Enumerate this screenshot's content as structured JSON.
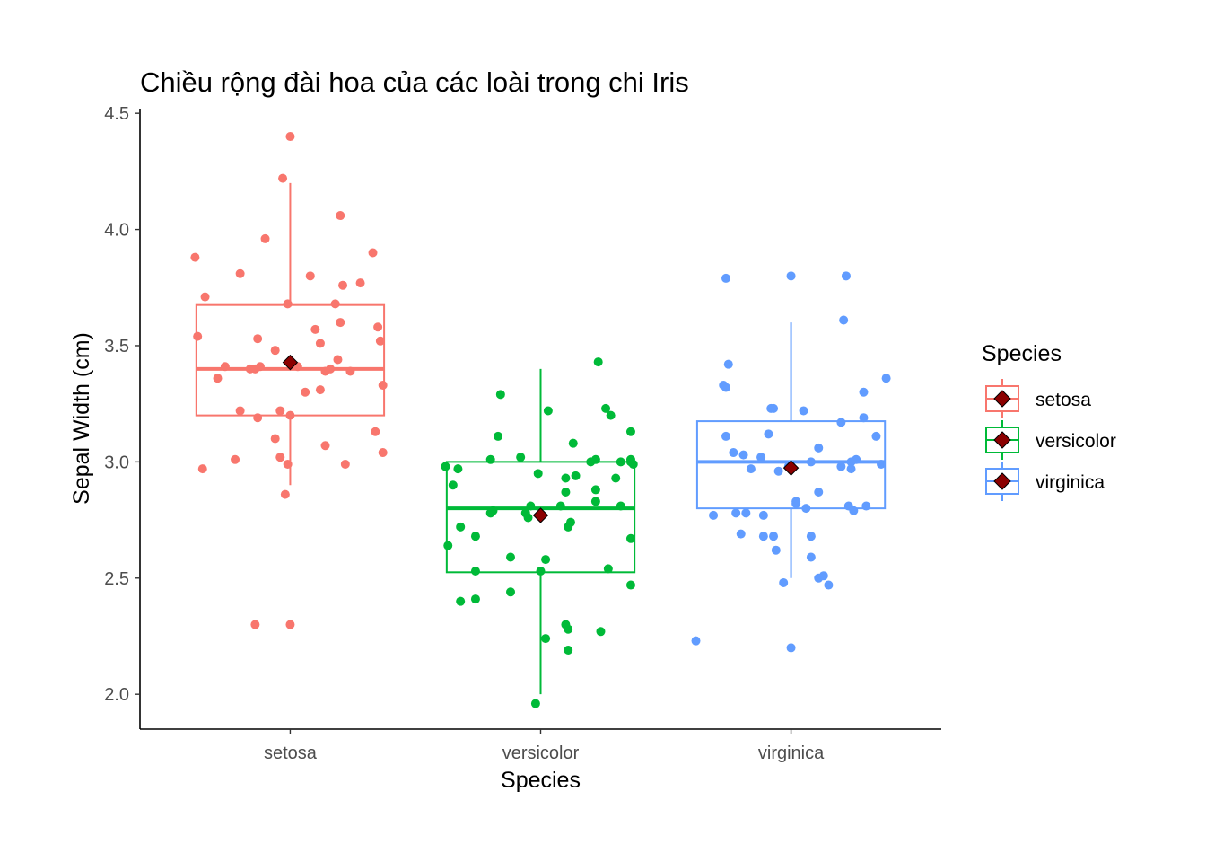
{
  "chart_data": {
    "type": "boxplot",
    "title": "Chiều rộng đài hoa của các loài trong chi Iris",
    "xlabel": "Species",
    "ylabel": "Sepal Width (cm)",
    "ylim": [
      1.85,
      4.52
    ],
    "yticks": [
      2.0,
      2.5,
      3.0,
      3.5,
      4.0,
      4.5
    ],
    "ytick_labels": [
      "2.0",
      "2.5",
      "3.0",
      "3.5",
      "4.0",
      "4.5"
    ],
    "categories": [
      "setosa",
      "versicolor",
      "virginica"
    ],
    "grid": false,
    "legend": {
      "title": "Species",
      "position": "right",
      "entries": [
        "setosa",
        "versicolor",
        "virginica"
      ]
    },
    "mean_marker_color": "#8B0000",
    "series": [
      {
        "name": "setosa",
        "color": "#F8766D",
        "box": {
          "q1": 3.2,
          "median": 3.4,
          "q3": 3.675,
          "whisker_low": 2.9,
          "whisker_high": 4.2,
          "mean": 3.428
        },
        "points": [
          [
            -0.38,
            3.88
          ],
          [
            -0.34,
            3.71
          ],
          [
            -0.29,
            3.36
          ],
          [
            -0.26,
            3.41
          ],
          [
            -0.2,
            3.22
          ],
          [
            -0.16,
            3.4
          ],
          [
            -0.1,
            3.96
          ],
          [
            -0.2,
            3.81
          ],
          [
            -0.13,
            3.19
          ],
          [
            -0.22,
            3.01
          ],
          [
            -0.37,
            3.54
          ],
          [
            -0.35,
            2.97
          ],
          [
            -0.06,
            3.48
          ],
          [
            -0.04,
            3.02
          ],
          [
            -0.13,
            3.53
          ],
          [
            -0.14,
            3.4
          ],
          [
            -0.06,
            3.1
          ],
          [
            -0.03,
            4.22
          ],
          [
            -0.04,
            3.22
          ],
          [
            -0.01,
            2.99
          ],
          [
            0.0,
            3.2
          ],
          [
            0.03,
            3.41
          ],
          [
            -0.12,
            3.41
          ],
          [
            0.08,
            3.8
          ],
          [
            0.06,
            3.3
          ],
          [
            -0.01,
            3.68
          ],
          [
            0.12,
            3.31
          ],
          [
            -0.02,
            2.86
          ],
          [
            0.14,
            3.39
          ],
          [
            0.1,
            3.57
          ],
          [
            0.0,
            4.4
          ],
          [
            0.12,
            3.51
          ],
          [
            -0.14,
            2.3
          ],
          [
            0.0,
            2.3
          ],
          [
            0.14,
            3.07
          ],
          [
            0.19,
            3.44
          ],
          [
            0.18,
            3.68
          ],
          [
            0.2,
            3.6
          ],
          [
            0.21,
            3.76
          ],
          [
            0.2,
            4.06
          ],
          [
            0.16,
            3.4
          ],
          [
            0.22,
            2.99
          ],
          [
            0.24,
            3.39
          ],
          [
            0.28,
            3.77
          ],
          [
            0.33,
            3.9
          ],
          [
            0.35,
            3.58
          ],
          [
            0.36,
            3.52
          ],
          [
            0.37,
            3.33
          ],
          [
            0.34,
            3.13
          ],
          [
            0.37,
            3.04
          ]
        ]
      },
      {
        "name": "versicolor",
        "color": "#00BA38",
        "box": {
          "q1": 2.525,
          "median": 2.8,
          "q3": 3.0,
          "whisker_low": 2.0,
          "whisker_high": 3.4,
          "mean": 2.77
        },
        "points": [
          [
            -0.38,
            2.98
          ],
          [
            -0.37,
            2.64
          ],
          [
            -0.35,
            2.9
          ],
          [
            -0.33,
            2.97
          ],
          [
            -0.32,
            2.72
          ],
          [
            -0.26,
            2.53
          ],
          [
            -0.26,
            2.68
          ],
          [
            -0.32,
            2.4
          ],
          [
            -0.26,
            2.41
          ],
          [
            -0.2,
            3.01
          ],
          [
            -0.19,
            2.79
          ],
          [
            -0.2,
            2.78
          ],
          [
            -0.16,
            3.29
          ],
          [
            -0.17,
            3.11
          ],
          [
            -0.12,
            2.59
          ],
          [
            -0.12,
            2.44
          ],
          [
            -0.08,
            3.02
          ],
          [
            -0.06,
            2.78
          ],
          [
            -0.05,
            2.76
          ],
          [
            -0.04,
            2.81
          ],
          [
            -0.01,
            2.95
          ],
          [
            0.0,
            2.53
          ],
          [
            0.02,
            2.58
          ],
          [
            0.02,
            2.24
          ],
          [
            0.03,
            3.22
          ],
          [
            -0.02,
            1.96
          ],
          [
            0.1,
            2.87
          ],
          [
            0.08,
            2.81
          ],
          [
            0.1,
            2.3
          ],
          [
            0.11,
            2.28
          ],
          [
            0.1,
            2.93
          ],
          [
            0.11,
            2.72
          ],
          [
            0.12,
            2.74
          ],
          [
            0.11,
            2.19
          ],
          [
            0.14,
            2.94
          ],
          [
            0.13,
            3.08
          ],
          [
            0.2,
            3.0
          ],
          [
            0.22,
            3.01
          ],
          [
            0.22,
            2.88
          ],
          [
            0.22,
            2.83
          ],
          [
            0.24,
            2.27
          ],
          [
            0.23,
            3.43
          ],
          [
            0.26,
            3.23
          ],
          [
            0.27,
            2.54
          ],
          [
            0.28,
            3.2
          ],
          [
            0.32,
            3.0
          ],
          [
            0.32,
            2.81
          ],
          [
            0.3,
            2.93
          ],
          [
            0.36,
            3.0
          ],
          [
            0.36,
            3.13
          ],
          [
            0.37,
            2.99
          ],
          [
            0.36,
            3.01
          ],
          [
            0.36,
            2.47
          ],
          [
            0.36,
            2.67
          ]
        ]
      },
      {
        "name": "virginica",
        "color": "#619CFF",
        "box": {
          "q1": 2.8,
          "median": 3.0,
          "q3": 3.175,
          "whisker_low": 2.5,
          "whisker_high": 3.6,
          "mean": 2.974
        },
        "points": [
          [
            -0.38,
            2.23
          ],
          [
            -0.31,
            2.77
          ],
          [
            -0.26,
            3.79
          ],
          [
            -0.26,
            3.11
          ],
          [
            -0.27,
            3.33
          ],
          [
            -0.26,
            3.32
          ],
          [
            -0.25,
            3.42
          ],
          [
            -0.23,
            3.04
          ],
          [
            -0.22,
            2.78
          ],
          [
            -0.2,
            2.69
          ],
          [
            -0.19,
            3.03
          ],
          [
            -0.18,
            2.78
          ],
          [
            -0.16,
            2.97
          ],
          [
            -0.12,
            3.02
          ],
          [
            -0.11,
            2.77
          ],
          [
            -0.11,
            2.68
          ],
          [
            -0.09,
            3.12
          ],
          [
            -0.07,
            3.23
          ],
          [
            -0.08,
            3.23
          ],
          [
            -0.07,
            2.68
          ],
          [
            -0.06,
            2.62
          ],
          [
            -0.05,
            2.96
          ],
          [
            -0.03,
            2.48
          ],
          [
            -0.01,
            2.98
          ],
          [
            0.0,
            2.2
          ],
          [
            0.0,
            3.8
          ],
          [
            0.02,
            2.83
          ],
          [
            0.02,
            2.82
          ],
          [
            0.05,
            3.22
          ],
          [
            0.06,
            2.8
          ],
          [
            0.08,
            2.59
          ],
          [
            0.08,
            2.68
          ],
          [
            0.08,
            3.0
          ],
          [
            0.11,
            2.87
          ],
          [
            0.11,
            3.06
          ],
          [
            0.11,
            2.5
          ],
          [
            0.13,
            2.51
          ],
          [
            0.15,
            2.47
          ],
          [
            0.2,
            3.17
          ],
          [
            0.2,
            2.98
          ],
          [
            0.21,
            3.61
          ],
          [
            0.23,
            2.81
          ],
          [
            0.24,
            2.97
          ],
          [
            0.22,
            3.8
          ],
          [
            0.24,
            3.0
          ],
          [
            0.26,
            3.01
          ],
          [
            0.25,
            2.79
          ],
          [
            0.29,
            3.19
          ],
          [
            0.29,
            3.3
          ],
          [
            0.3,
            2.81
          ],
          [
            0.34,
            3.11
          ],
          [
            0.36,
            2.99
          ],
          [
            0.38,
            3.36
          ]
        ]
      }
    ]
  }
}
